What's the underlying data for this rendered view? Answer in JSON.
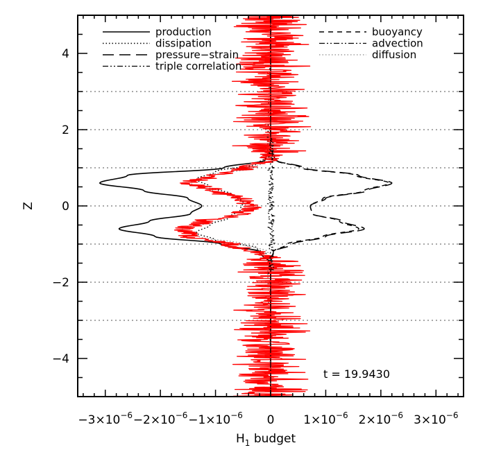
{
  "chart_data": {
    "type": "line",
    "xlabel": "H1 budget",
    "xlabel_main": "H",
    "xlabel_sub": "1",
    "xlabel_rest": " budget",
    "ylabel": "Z",
    "xlim": [
      -3.5e-06,
      3.5e-06
    ],
    "ylim": [
      -5,
      5
    ],
    "x_ticks": [
      {
        "value": -3e-06,
        "mant": "−3×10",
        "exp": "−6"
      },
      {
        "value": -2e-06,
        "mant": "−2×10",
        "exp": "−6"
      },
      {
        "value": -1e-06,
        "mant": "−1×10",
        "exp": "−6"
      },
      {
        "value": 0,
        "mant": "0",
        "exp": ""
      },
      {
        "value": 1e-06,
        "mant": "1×10",
        "exp": "−6"
      },
      {
        "value": 2e-06,
        "mant": "2×10",
        "exp": "−6"
      },
      {
        "value": 3e-06,
        "mant": "3×10",
        "exp": "−6"
      }
    ],
    "y_ticks": [
      {
        "value": 4,
        "label": "4"
      },
      {
        "value": 2,
        "label": "2"
      },
      {
        "value": 0,
        "label": "0"
      },
      {
        "value": -2,
        "label": "−2"
      },
      {
        "value": -4,
        "label": "−4"
      }
    ],
    "hlines": [
      3,
      2,
      1,
      0,
      -1,
      -2,
      -3
    ],
    "annotation": "t = 19.9430",
    "legend_left": [
      "production",
      "dissipation",
      "pressure−strain",
      "triple correlation"
    ],
    "legend_right": [
      "buoyancy",
      "advection",
      "diffusion"
    ],
    "series": [
      {
        "name": "production",
        "style": "solid",
        "color": "#000000",
        "z": [
          -5,
          -1.8,
          -1.5,
          -1.2,
          -1.0,
          -0.8,
          -0.6,
          -0.4,
          -0.2,
          0,
          0.2,
          0.4,
          0.6,
          0.8,
          1.0,
          1.2,
          1.5,
          1.8,
          5
        ],
        "value": [
          0,
          0,
          -2e-08,
          -2e-07,
          -9e-07,
          -2.1e-06,
          -2.75e-06,
          -2.2e-06,
          -1.45e-06,
          -1.25e-06,
          -1.5e-06,
          -2.3e-06,
          -3.1e-06,
          -2.6e-06,
          -8.5e-07,
          -1e-07,
          0,
          0,
          0
        ]
      },
      {
        "name": "buoyancy",
        "style": "dashed",
        "color": "#000000",
        "z": [
          -5,
          -1.5,
          -1.2,
          -1.0,
          -0.8,
          -0.6,
          -0.4,
          -0.2,
          0,
          0.2,
          0.4,
          0.6,
          0.8,
          1.0,
          1.2,
          1.5,
          5
        ],
        "value": [
          0,
          0,
          5e-08,
          3e-07,
          9.5e-07,
          1.6e-06,
          1.25e-06,
          7.5e-07,
          7.2e-07,
          9.5e-07,
          1.7e-06,
          2.15e-06,
          1.55e-06,
          5.5e-07,
          8e-08,
          0,
          0
        ]
      },
      {
        "name": "pressure−strain",
        "style": "longdash",
        "color": "#000000",
        "z": [
          -5,
          -1.5,
          -1.2,
          -1.0,
          -0.8,
          -0.6,
          -0.4,
          -0.2,
          0,
          0.2,
          0.4,
          0.6,
          0.8,
          1.0,
          1.2,
          1.5,
          5
        ],
        "value": [
          0,
          0,
          5e-08,
          4e-07,
          1e-06,
          1.7e-06,
          1.3e-06,
          7.5e-07,
          7.2e-07,
          1e-06,
          1.75e-06,
          2.2e-06,
          1.6e-06,
          6e-07,
          1e-07,
          0,
          0
        ]
      },
      {
        "name": "dissipation",
        "style": "dotted",
        "color": "#000000",
        "z": [
          -5,
          -1.3,
          -1.1,
          -0.9,
          -0.7,
          -0.5,
          -0.3,
          -0.1,
          0.1,
          0.3,
          0.5,
          0.7,
          0.9,
          1.1,
          1.3,
          5
        ],
        "value": [
          0,
          -5e-08,
          -2.5e-07,
          -1e-06,
          -1.35e-06,
          -1.1e-06,
          -7.5e-07,
          -5.5e-07,
          -5e-07,
          -7e-07,
          -1.1e-06,
          -1.35e-06,
          -1e-06,
          -2.5e-07,
          -5e-08,
          0
        ]
      },
      {
        "name": "diffusion",
        "style": "dotted-gray",
        "color": "#777777",
        "z": [
          -5,
          -1.2,
          -1.0,
          -0.8,
          -0.6,
          -0.4,
          -0.2,
          0,
          0.2,
          0.4,
          0.6,
          0.8,
          1.0,
          1.2,
          5
        ],
        "value": [
          0,
          -5e-08,
          -5e-07,
          -1.3e-06,
          -1.6e-06,
          -1e-06,
          -5.5e-07,
          -4.5e-07,
          -6e-07,
          -1.05e-06,
          -1.45e-06,
          -1.1e-06,
          -3e-07,
          -2e-08,
          0
        ]
      },
      {
        "name": "red",
        "style": "red",
        "color": "#ff0000",
        "amp_outer": 7.5e-07,
        "amp_inner": 2.2e-07,
        "env_z": [
          -1.3,
          -1.0,
          -0.8,
          -0.6,
          -0.4,
          -0.2,
          0,
          0.2,
          0.4,
          0.6,
          0.8,
          1.0,
          1.2
        ],
        "env_value": [
          -5e-08,
          -7.5e-07,
          -1.45e-06,
          -1.55e-06,
          -1.2e-06,
          -5e-07,
          -3.5e-07,
          -5.5e-07,
          -1.05e-06,
          -1.45e-06,
          -1e-06,
          -4.5e-07,
          -5e-08
        ]
      },
      {
        "name": "triple correlation",
        "style": "dashdotdot",
        "color": "#000000",
        "z": [
          -5,
          -1.8,
          -1.0,
          0,
          1.0,
          1.8,
          5
        ],
        "value": [
          0,
          0,
          2e-08,
          0.0,
          2e-08,
          0,
          0
        ]
      }
    ]
  }
}
